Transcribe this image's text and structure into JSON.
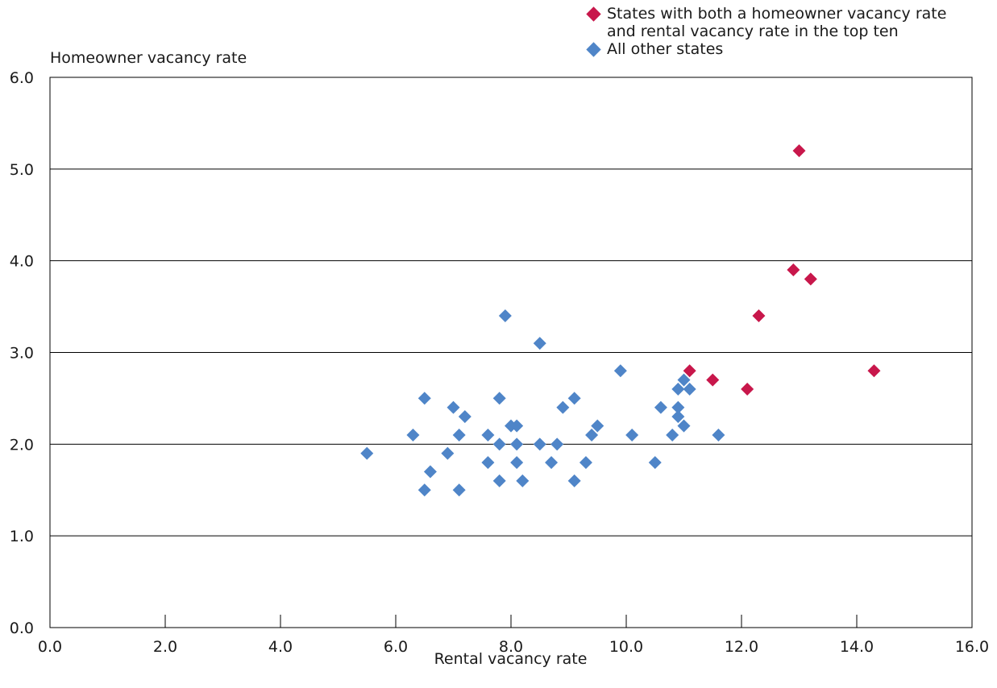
{
  "chart_data": {
    "type": "scatter",
    "xlabel": "Rental vacancy rate",
    "ylabel": "Homeowner vacancy rate",
    "xlim": [
      0,
      16
    ],
    "ylim": [
      0,
      6
    ],
    "x_ticks": [
      "0.0",
      "2.0",
      "4.0",
      "6.0",
      "8.0",
      "10.0",
      "12.0",
      "14.0",
      "16.0"
    ],
    "y_ticks": [
      "0.0",
      "1.0",
      "2.0",
      "3.0",
      "4.0",
      "5.0",
      "6.0"
    ],
    "grid": "horizontal",
    "legend_position": "top-right",
    "series": [
      {
        "name": "States with both a homeowner vacancy rate and rental vacancy rate in the top ten",
        "color": "#c8174b",
        "marker": "diamond",
        "points": [
          {
            "x": 13.0,
            "y": 5.2
          },
          {
            "x": 12.9,
            "y": 3.9
          },
          {
            "x": 13.2,
            "y": 3.8
          },
          {
            "x": 12.3,
            "y": 3.4
          },
          {
            "x": 11.1,
            "y": 2.8
          },
          {
            "x": 11.5,
            "y": 2.7
          },
          {
            "x": 12.1,
            "y": 2.6
          },
          {
            "x": 14.3,
            "y": 2.8
          }
        ]
      },
      {
        "name": "All other states",
        "color": "#4f85c8",
        "marker": "diamond",
        "points": [
          {
            "x": 5.5,
            "y": 1.9
          },
          {
            "x": 6.3,
            "y": 2.1
          },
          {
            "x": 6.5,
            "y": 2.5
          },
          {
            "x": 6.5,
            "y": 1.5
          },
          {
            "x": 6.6,
            "y": 1.7
          },
          {
            "x": 6.9,
            "y": 1.9
          },
          {
            "x": 7.0,
            "y": 2.4
          },
          {
            "x": 7.1,
            "y": 2.1
          },
          {
            "x": 7.1,
            "y": 1.5
          },
          {
            "x": 7.2,
            "y": 2.3
          },
          {
            "x": 7.6,
            "y": 2.1
          },
          {
            "x": 7.6,
            "y": 1.8
          },
          {
            "x": 7.8,
            "y": 2.5
          },
          {
            "x": 7.8,
            "y": 2.0
          },
          {
            "x": 7.8,
            "y": 1.6
          },
          {
            "x": 7.9,
            "y": 3.4
          },
          {
            "x": 8.0,
            "y": 2.2
          },
          {
            "x": 8.1,
            "y": 2.2
          },
          {
            "x": 8.1,
            "y": 2.0
          },
          {
            "x": 8.1,
            "y": 1.8
          },
          {
            "x": 8.2,
            "y": 1.6
          },
          {
            "x": 8.5,
            "y": 3.1
          },
          {
            "x": 8.5,
            "y": 2.0
          },
          {
            "x": 8.7,
            "y": 1.8
          },
          {
            "x": 8.8,
            "y": 2.0
          },
          {
            "x": 8.9,
            "y": 2.4
          },
          {
            "x": 9.1,
            "y": 2.5
          },
          {
            "x": 9.1,
            "y": 1.6
          },
          {
            "x": 9.3,
            "y": 1.8
          },
          {
            "x": 9.4,
            "y": 2.1
          },
          {
            "x": 9.5,
            "y": 2.2
          },
          {
            "x": 9.9,
            "y": 2.8
          },
          {
            "x": 10.1,
            "y": 2.1
          },
          {
            "x": 10.5,
            "y": 1.8
          },
          {
            "x": 10.6,
            "y": 2.4
          },
          {
            "x": 10.8,
            "y": 2.1
          },
          {
            "x": 10.9,
            "y": 2.6
          },
          {
            "x": 10.9,
            "y": 2.4
          },
          {
            "x": 10.9,
            "y": 2.3
          },
          {
            "x": 11.0,
            "y": 2.7
          },
          {
            "x": 11.0,
            "y": 2.2
          },
          {
            "x": 11.1,
            "y": 2.6
          },
          {
            "x": 11.6,
            "y": 2.1
          }
        ]
      }
    ]
  }
}
